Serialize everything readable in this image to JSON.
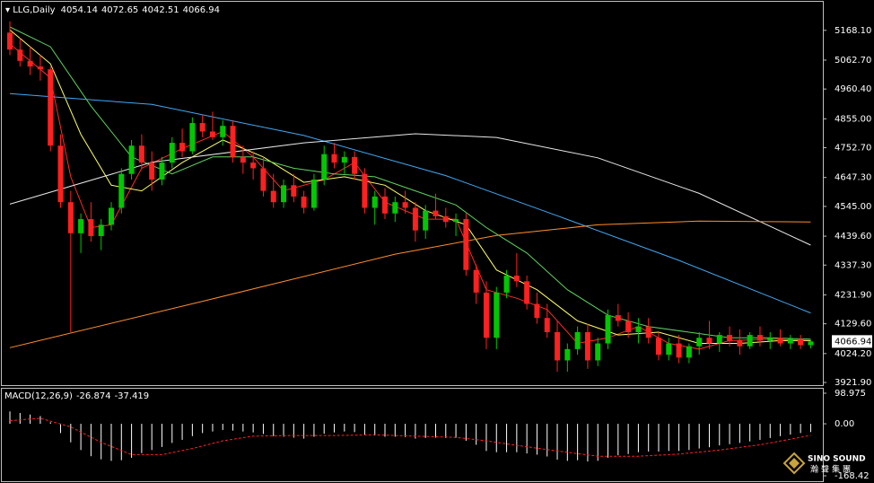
{
  "chart_data": [
    {
      "type": "candlestick",
      "title": "LLG,Daily",
      "open": [
        5160,
        5100,
        5060,
        5040,
        5030,
        4760,
        4560,
        4450,
        4500,
        4440,
        4480,
        4540,
        4660,
        4760,
        4700,
        4640,
        4700,
        4770,
        4740,
        4840,
        4810,
        4790,
        4830,
        4720,
        4700,
        4680,
        4600,
        4560,
        4620,
        4580,
        4540,
        4640,
        4730,
        4700,
        4720,
        4660,
        4540,
        4580,
        4520,
        4560,
        4540,
        4460,
        4530,
        4510,
        4490,
        4500,
        4320,
        4240,
        4080,
        4240,
        4300,
        4280,
        4200,
        4150,
        4100,
        4000,
        4040,
        4100,
        4000,
        4060,
        4160,
        4140,
        4100,
        4120,
        4080,
        4020,
        4060,
        4010,
        4050,
        4080,
        4060,
        4090,
        4070,
        4050,
        4090,
        4070,
        4080,
        4060,
        4076,
        4054.14
      ],
      "high": [
        5200,
        5140,
        5110,
        5080,
        5040,
        4800,
        4600,
        4520,
        4560,
        4500,
        4560,
        4680,
        4780,
        4800,
        4740,
        4720,
        4790,
        4820,
        4860,
        4870,
        4880,
        4850,
        4850,
        4760,
        4740,
        4720,
        4660,
        4640,
        4660,
        4600,
        4660,
        4760,
        4770,
        4740,
        4740,
        4680,
        4600,
        4610,
        4580,
        4600,
        4560,
        4550,
        4590,
        4540,
        4520,
        4520,
        4340,
        4280,
        4260,
        4320,
        4380,
        4300,
        4240,
        4200,
        4140,
        4060,
        4120,
        4130,
        4080,
        4180,
        4200,
        4170,
        4150,
        4150,
        4100,
        4080,
        4090,
        4060,
        4100,
        4140,
        4100,
        4120,
        4110,
        4100,
        4120,
        4100,
        4110,
        4090,
        4090,
        4072.65
      ],
      "low": [
        5080,
        5040,
        5010,
        4990,
        4740,
        4540,
        4100,
        4380,
        4420,
        4390,
        4460,
        4520,
        4640,
        4680,
        4600,
        4620,
        4680,
        4720,
        4730,
        4790,
        4780,
        4760,
        4700,
        4660,
        4640,
        4580,
        4540,
        4540,
        4560,
        4520,
        4530,
        4620,
        4680,
        4660,
        4640,
        4520,
        4480,
        4500,
        4490,
        4520,
        4420,
        4430,
        4500,
        4470,
        4440,
        4300,
        4200,
        4040,
        4040,
        4220,
        4260,
        4180,
        4130,
        4080,
        3960,
        3960,
        4020,
        3970,
        3980,
        4040,
        4120,
        4080,
        4060,
        4060,
        4000,
        4000,
        3990,
        3990,
        4020,
        4040,
        4030,
        4050,
        4020,
        4040,
        4050,
        4040,
        4050,
        4040,
        4040,
        4042.51
      ],
      "close": [
        5100,
        5060,
        5040,
        5030,
        4760,
        4560,
        4450,
        4500,
        4440,
        4480,
        4540,
        4660,
        4760,
        4700,
        4640,
        4700,
        4770,
        4740,
        4840,
        4810,
        4790,
        4830,
        4720,
        4700,
        4680,
        4600,
        4560,
        4620,
        4580,
        4540,
        4640,
        4730,
        4700,
        4720,
        4660,
        4540,
        4580,
        4520,
        4560,
        4540,
        4460,
        4530,
        4510,
        4490,
        4500,
        4320,
        4240,
        4080,
        4240,
        4300,
        4280,
        4200,
        4150,
        4100,
        4000,
        4040,
        4100,
        4000,
        4060,
        4160,
        4140,
        4100,
        4120,
        4080,
        4020,
        4060,
        4010,
        4050,
        4080,
        4060,
        4090,
        4070,
        4050,
        4090,
        4070,
        4080,
        4060,
        4076,
        4054,
        4066.94
      ],
      "up_color": "#00c800",
      "down_color": "#ff2020",
      "series": [
        {
          "color": "#ff2a2a",
          "x": [
            0,
            4,
            6,
            8,
            10,
            13,
            17,
            21,
            24,
            27,
            31,
            34,
            37,
            41,
            44,
            47,
            50,
            53,
            56,
            59,
            62,
            65,
            68,
            71,
            75,
            79
          ],
          "values": [
            5120,
            5000,
            4650,
            4470,
            4480,
            4680,
            4750,
            4810,
            4720,
            4600,
            4640,
            4700,
            4560,
            4500,
            4500,
            4250,
            4220,
            4180,
            4060,
            4080,
            4120,
            4060,
            4040,
            4070,
            4075,
            4070
          ]
        },
        {
          "color": "#ffff66",
          "x": [
            0,
            4,
            7,
            10,
            13,
            17,
            21,
            25,
            29,
            33,
            37,
            41,
            45,
            48,
            52,
            56,
            60,
            64,
            68,
            72,
            76,
            79
          ],
          "values": [
            5170,
            5050,
            4800,
            4620,
            4600,
            4700,
            4780,
            4720,
            4630,
            4650,
            4620,
            4530,
            4480,
            4320,
            4250,
            4140,
            4090,
            4100,
            4060,
            4060,
            4070,
            4070
          ]
        },
        {
          "color": "#5fd35f",
          "x": [
            0,
            4,
            8,
            12,
            16,
            20,
            24,
            28,
            32,
            36,
            40,
            44,
            47,
            51,
            55,
            59,
            63,
            67,
            71,
            75,
            79
          ],
          "values": [
            5180,
            5110,
            4900,
            4720,
            4660,
            4720,
            4720,
            4680,
            4660,
            4650,
            4600,
            4550,
            4470,
            4380,
            4250,
            4160,
            4120,
            4100,
            4080,
            4080,
            4075
          ]
        },
        {
          "color": "#3fa9f5",
          "x": [
            0,
            14,
            29,
            43,
            54,
            66,
            79
          ],
          "values": [
            4944,
            4906,
            4796,
            4654,
            4512,
            4354,
            4168
          ]
        },
        {
          "color": "#e8e8e8",
          "x": [
            0,
            14,
            29,
            40,
            48,
            58,
            68,
            79
          ],
          "values": [
            4553,
            4701,
            4770,
            4802,
            4789,
            4717,
            4591,
            4408
          ]
        },
        {
          "color": "#ff8c2a",
          "x": [
            0,
            19,
            38,
            48,
            58,
            68,
            79
          ],
          "values": [
            4045,
            4209,
            4376,
            4442,
            4480,
            4493,
            4490
          ]
        }
      ],
      "xlim": [
        -0.8,
        80.2
      ],
      "ylim": [
        3912.4,
        5269.1
      ],
      "yticks": [
        {
          "value": 5168.1,
          "label": "5168.10"
        },
        {
          "value": 5062.7,
          "label": "5062.70"
        },
        {
          "value": 4960.4,
          "label": "4960.40"
        },
        {
          "value": 4855,
          "label": "4855.00"
        },
        {
          "value": 4752.7,
          "label": "4752.70"
        },
        {
          "value": 4647.3,
          "label": "4647.30"
        },
        {
          "value": 4545,
          "label": "4545.00"
        },
        {
          "value": 4439.6,
          "label": "4439.60"
        },
        {
          "value": 4337.3,
          "label": "4337.30"
        },
        {
          "value": 4231.9,
          "label": "4231.90"
        },
        {
          "value": 4129.6,
          "label": "4129.60"
        },
        {
          "value": 4024.2,
          "label": "4024.20"
        },
        {
          "value": 3921.9,
          "label": "3921.90"
        }
      ]
    },
    {
      "type": "macd",
      "title": "MACD(12,26,9)",
      "values": [
        40,
        35,
        30,
        25,
        5,
        -30,
        -60,
        -85,
        -105,
        -115,
        -120,
        -118,
        -110,
        -95,
        -85,
        -75,
        -62,
        -52,
        -40,
        -30,
        -25,
        -20,
        -22,
        -25,
        -28,
        -33,
        -40,
        -42,
        -45,
        -48,
        -42,
        -32,
        -28,
        -25,
        -27,
        -35,
        -38,
        -42,
        -42,
        -43,
        -48,
        -46,
        -45,
        -46,
        -46,
        -55,
        -68,
        -88,
        -92,
        -92,
        -92,
        -96,
        -100,
        -106,
        -116,
        -120,
        -118,
        -122,
        -120,
        -110,
        -102,
        -98,
        -92,
        -90,
        -90,
        -88,
        -88,
        -85,
        -80,
        -76,
        -70,
        -66,
        -62,
        -57,
        -52,
        -46,
        -40,
        -35,
        -30,
        -26.874
      ],
      "color": "#ffffff",
      "signal": {
        "color": "#ff2020",
        "x": [
          0,
          3,
          6,
          9,
          12,
          15,
          18,
          21,
          24,
          28,
          32,
          36,
          40,
          44,
          47,
          50,
          54,
          58,
          62,
          66,
          70,
          74,
          77,
          79
        ],
        "values": [
          10,
          18,
          -10,
          -60,
          -100,
          -100,
          -80,
          -55,
          -40,
          -38,
          -38,
          -36,
          -40,
          -44,
          -55,
          -70,
          -88,
          -105,
          -105,
          -98,
          -85,
          -68,
          -50,
          -37.419
        ]
      },
      "xlim": [
        -0.8,
        80.2
      ],
      "ylim": [
        -185.9,
        113.5
      ],
      "yticks": [
        98.975,
        {
          "value": 0,
          "label": "0.00"
        },
        -168.42
      ]
    }
  ],
  "logo": {
    "name": "SINO SOUND",
    "subtitle": "瀚聲集團"
  }
}
